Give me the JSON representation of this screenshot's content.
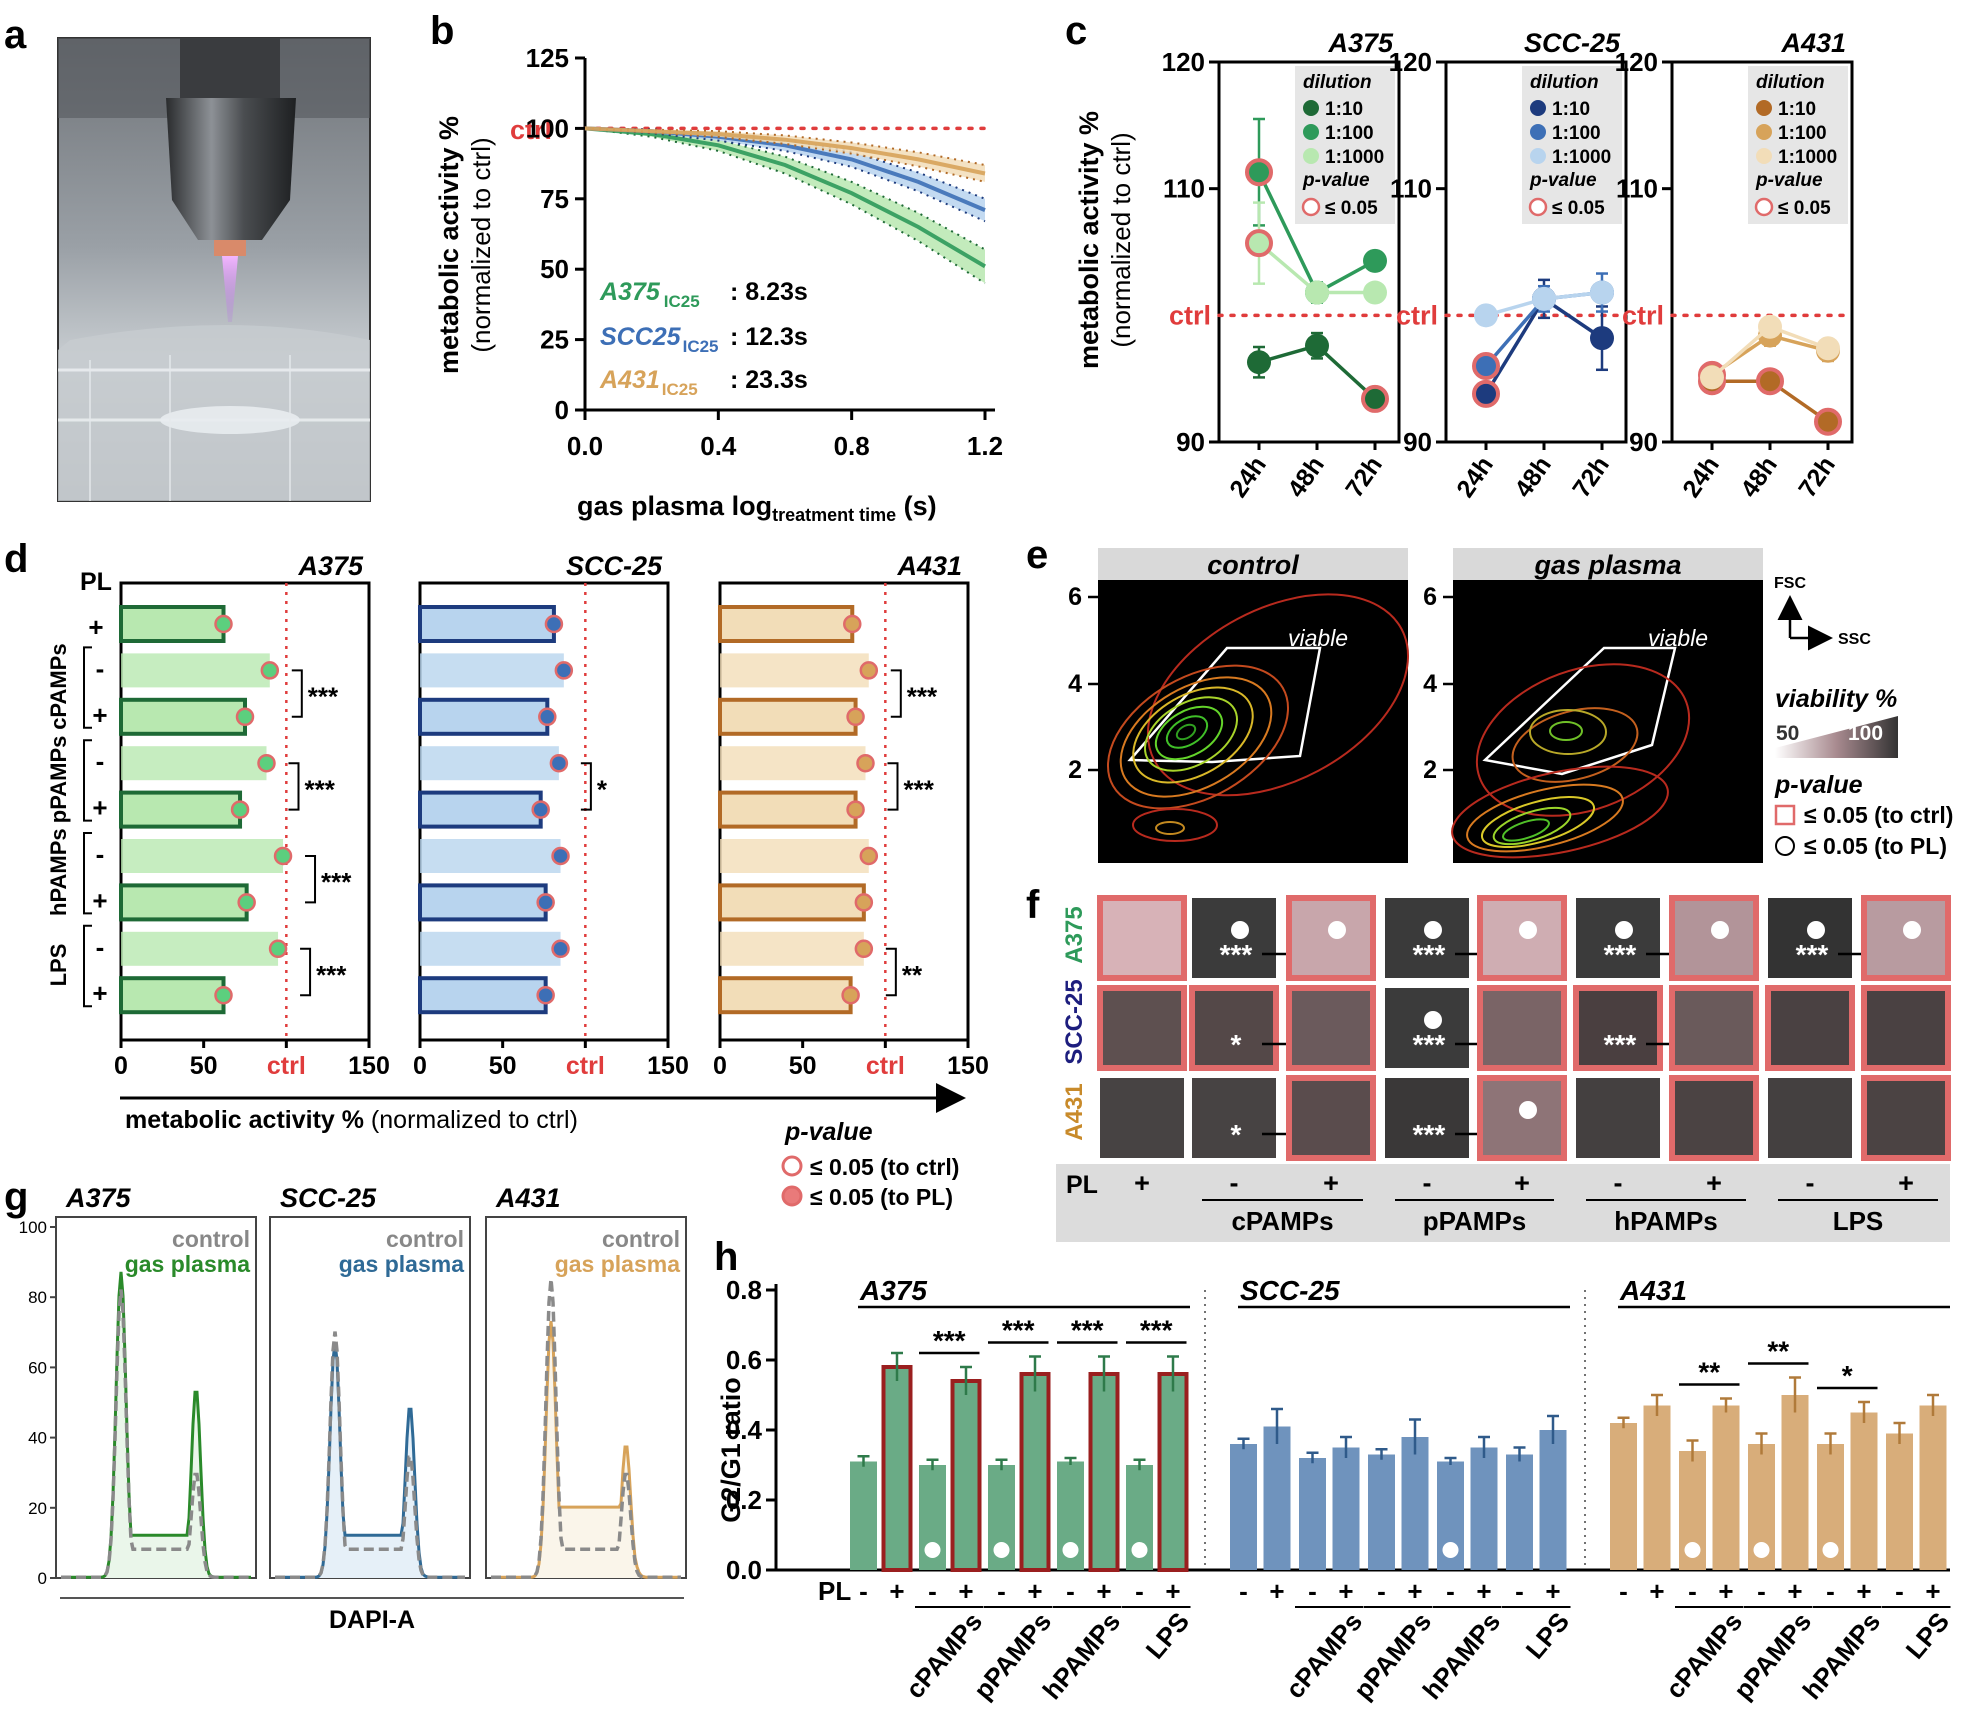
{
  "colors": {
    "a375": "#2e9a5a",
    "a375_dark": "#1e6a36",
    "a375_light": "#b8e8b0",
    "scc25": "#3d6fb6",
    "scc25_dark": "#1d3b7e",
    "scc25_light": "#b8d4ee",
    "a431": "#d7a35a",
    "a431_dark": "#b26a26",
    "a431_light": "#f2ddb8",
    "ctrl": "#e03c3c",
    "pvalue": "#e06a6a"
  },
  "panels": {
    "a": "a",
    "b": "b",
    "c": "c",
    "d": "d",
    "e": "e",
    "f": "f",
    "g": "g",
    "h": "h"
  },
  "common": {
    "ctrl": "ctrl",
    "PL": "PL",
    "plus": "+",
    "minus": "-",
    "conditions": [
      "cPAMPs",
      "pPAMPs",
      "hPAMPs",
      "LPS"
    ],
    "cell_lines": [
      "A375",
      "SCC-25",
      "A431"
    ]
  },
  "panel_b": {
    "ylabel_1": "metabolic activity %",
    "ylabel_2": "(normalized to ctrl)",
    "xlabel_main": "gas plasma log",
    "xlabel_sub": "treatment time",
    "xlabel_unit": " (s)",
    "yticks": [
      "0",
      "25",
      "50",
      "75",
      "100",
      "125"
    ],
    "xticks": [
      "0.0",
      "0.4",
      "0.8",
      "1.2"
    ],
    "ic_rows": [
      {
        "name": "A375",
        "sub": "IC25",
        "value": ": 8.23s"
      },
      {
        "name": "SCC25",
        "sub": "IC25",
        "value": ": 12.3s"
      },
      {
        "name": "A431",
        "sub": "IC25",
        "value": ": 23.3s"
      }
    ]
  },
  "panel_c": {
    "ylabel_1": "metabolic activity %",
    "ylabel_2": "(normalized to ctrl)",
    "yticks": [
      "90",
      "110",
      "120"
    ],
    "xticks": [
      "24h",
      "48h",
      "72h"
    ],
    "legend_title": "dilution",
    "dilutions": [
      "1:10",
      "1:100",
      "1:1000"
    ],
    "pvalue_title": "p-value",
    "pvalue_entry": "≤ 0.05"
  },
  "panel_d": {
    "xlabel_bold": "metabolic activity %",
    "xlabel_normal": " (normalized to ctrl)",
    "xticks": [
      "0",
      "50",
      "150"
    ],
    "group_labels": [
      "cPAMPs",
      "pPAMPs",
      "hPAMPs",
      "LPS"
    ],
    "sig": {
      "A375": [
        "***",
        "***",
        "***",
        "***"
      ],
      "SCC-25": [
        "",
        "*",
        "",
        ""
      ],
      "A431": [
        "***",
        "***",
        "",
        "**"
      ]
    },
    "legend_title": "p-value",
    "legend_ctrl": "≤ 0.05 (to ctrl)",
    "legend_pl": "≤ 0.05 (to PL)"
  },
  "panel_e": {
    "titles": [
      "control",
      "gas plasma"
    ],
    "gate_label": "viable",
    "yticks": [
      "6",
      "4",
      "2"
    ],
    "fsc": "FSC",
    "ssc": "SSC",
    "viability_title": "viability %",
    "viability_min": "50",
    "viability_max": "100",
    "pvalue_title": "p-value",
    "pvalue_ctrl": "≤ 0.05 (to ctrl)",
    "pvalue_pl": "≤ 0.05 (to PL)"
  },
  "panel_f": {
    "rows": [
      {
        "cells": [
          {
            "color": "#d7b2b7",
            "border": true,
            "dot": false,
            "stars": ""
          },
          {
            "color": "#3b3b3b",
            "border": false,
            "dot": true,
            "stars": "***"
          },
          {
            "color": "#c8a6ab",
            "border": true,
            "dot": true,
            "stars": ""
          },
          {
            "color": "#3a3a3a",
            "border": false,
            "dot": true,
            "stars": "***"
          },
          {
            "color": "#cfadb2",
            "border": true,
            "dot": true,
            "stars": ""
          },
          {
            "color": "#3b3b3b",
            "border": false,
            "dot": true,
            "stars": "***"
          },
          {
            "color": "#b29499",
            "border": true,
            "dot": true,
            "stars": ""
          },
          {
            "color": "#333333",
            "border": false,
            "dot": true,
            "stars": "***"
          },
          {
            "color": "#b89ba0",
            "border": true,
            "dot": true,
            "stars": ""
          }
        ]
      },
      {
        "cells": [
          {
            "color": "#5e5050",
            "border": true,
            "dot": false,
            "stars": ""
          },
          {
            "color": "#544848",
            "border": true,
            "dot": false,
            "stars": "*"
          },
          {
            "color": "#6b5a5c",
            "border": true,
            "dot": false,
            "stars": ""
          },
          {
            "color": "#3b3b3b",
            "border": false,
            "dot": true,
            "stars": "***"
          },
          {
            "color": "#7a6466",
            "border": true,
            "dot": false,
            "stars": ""
          },
          {
            "color": "#4a3f40",
            "border": true,
            "dot": false,
            "stars": "***"
          },
          {
            "color": "#6a5a5b",
            "border": true,
            "dot": false,
            "stars": ""
          },
          {
            "color": "#4a4142",
            "border": true,
            "dot": false,
            "stars": ""
          },
          {
            "color": "#4a4142",
            "border": true,
            "dot": false,
            "stars": ""
          }
        ]
      },
      {
        "cells": [
          {
            "color": "#474343",
            "border": false,
            "dot": false,
            "stars": ""
          },
          {
            "color": "#474343",
            "border": false,
            "dot": false,
            "stars": "*"
          },
          {
            "color": "#5a4c4d",
            "border": true,
            "dot": false,
            "stars": ""
          },
          {
            "color": "#3a3838",
            "border": false,
            "dot": false,
            "stars": "***"
          },
          {
            "color": "#8e7477",
            "border": true,
            "dot": true,
            "stars": ""
          },
          {
            "color": "#444040",
            "border": false,
            "dot": false,
            "stars": ""
          },
          {
            "color": "#4b4343",
            "border": true,
            "dot": false,
            "stars": ""
          },
          {
            "color": "#444040",
            "border": false,
            "dot": false,
            "stars": ""
          },
          {
            "color": "#4b4343",
            "border": true,
            "dot": false,
            "stars": ""
          }
        ]
      }
    ],
    "pl_signs": [
      "+",
      "-",
      "+",
      "-",
      "+",
      "-",
      "+",
      "-",
      "+"
    ]
  },
  "panel_g": {
    "legend_control": "control",
    "legend_plasma": "gas plasma",
    "yticks": [
      "100",
      "80",
      "60",
      "40",
      "20",
      "0"
    ],
    "xlabel": "DAPI-A"
  },
  "panel_h": {
    "ylabel": "G2/G1 ratio",
    "yticks": [
      "0.0",
      "0.2",
      "0.4",
      "0.6",
      "0.8"
    ],
    "PL": "PL",
    "x_signs": [
      "-",
      "+",
      "-",
      "+",
      "-",
      "+",
      "-",
      "+",
      "-",
      "+"
    ],
    "groups": [
      {
        "name": "A375",
        "values": [
          0.31,
          0.58,
          0.3,
          0.54,
          0.3,
          0.56,
          0.31,
          0.56,
          0.3,
          0.56
        ],
        "errors": [
          0.015,
          0.04,
          0.015,
          0.04,
          0.015,
          0.05,
          0.01,
          0.05,
          0.015,
          0.05
        ],
        "red_border": [
          false,
          true,
          false,
          true,
          false,
          true,
          false,
          true,
          false,
          true
        ],
        "dots": [
          false,
          false,
          true,
          false,
          true,
          false,
          true,
          false,
          true,
          false
        ],
        "sig": [
          "***",
          "***",
          "***",
          "***"
        ]
      },
      {
        "name": "SCC-25",
        "values": [
          0.36,
          0.41,
          0.32,
          0.35,
          0.33,
          0.38,
          0.31,
          0.35,
          0.33,
          0.4
        ],
        "errors": [
          0.015,
          0.05,
          0.015,
          0.03,
          0.015,
          0.05,
          0.01,
          0.03,
          0.02,
          0.04
        ],
        "red_border": [
          false,
          false,
          false,
          false,
          false,
          false,
          false,
          false,
          false,
          false
        ],
        "dots": [
          false,
          false,
          false,
          false,
          false,
          false,
          true,
          false,
          false,
          false
        ],
        "sig": [
          "",
          "",
          "",
          ""
        ]
      },
      {
        "name": "A431",
        "values": [
          0.42,
          0.47,
          0.34,
          0.47,
          0.36,
          0.5,
          0.36,
          0.45,
          0.39,
          0.47
        ],
        "errors": [
          0.015,
          0.03,
          0.03,
          0.02,
          0.03,
          0.05,
          0.03,
          0.03,
          0.03,
          0.03
        ],
        "red_border": [
          false,
          false,
          false,
          false,
          false,
          false,
          false,
          false,
          false,
          false
        ],
        "dots": [
          false,
          false,
          true,
          false,
          true,
          false,
          true,
          false,
          false,
          false
        ],
        "sig": [
          "**",
          "**",
          "*",
          ""
        ]
      }
    ]
  },
  "chart_data": [
    {
      "type": "line",
      "id": "b",
      "xlabel": "gas plasma log treatment time (s)",
      "ylabel": "metabolic activity % (normalized to ctrl)",
      "xlim": [
        0,
        1.2
      ],
      "ylim": [
        0,
        125
      ],
      "x": [
        0.0,
        0.2,
        0.4,
        0.6,
        0.8,
        1.0,
        1.2
      ],
      "series": [
        {
          "name": "A375",
          "values": [
            100,
            98,
            94,
            87,
            77,
            65,
            51
          ]
        },
        {
          "name": "SCC25",
          "values": [
            100,
            99,
            97,
            94,
            89,
            81,
            71
          ]
        },
        {
          "name": "A431",
          "values": [
            100,
            99,
            98,
            96,
            93,
            89,
            84
          ]
        }
      ],
      "ctrl": 100
    },
    {
      "type": "line",
      "id": "c",
      "categories": [
        "24h",
        "48h",
        "72h"
      ],
      "ylim": [
        90,
        120
      ],
      "panels": [
        {
          "name": "A375",
          "series": [
            {
              "name": "1:10",
              "values": [
                96.3,
                97.6,
                93.4
              ],
              "err": [
                1.2,
                1.0,
                0.8
              ],
              "sig": [
                false,
                false,
                true
              ]
            },
            {
              "name": "1:100",
              "values": [
                111.3,
                101.8,
                104.3
              ],
              "err": [
                4.2,
                0.8,
                0.5
              ],
              "sig": [
                true,
                false,
                false
              ]
            },
            {
              "name": "1:1000",
              "values": [
                105.7,
                101.8,
                101.8
              ],
              "err": [
                3.2,
                0.5,
                0.5
              ],
              "sig": [
                true,
                false,
                false
              ]
            }
          ]
        },
        {
          "name": "SCC-25",
          "series": [
            {
              "name": "1:10",
              "values": [
                93.8,
                101.3,
                98.2
              ],
              "err": [
                0.5,
                1.5,
                2.5
              ],
              "sig": [
                true,
                false,
                false
              ]
            },
            {
              "name": "1:100",
              "values": [
                96.0,
                101.3,
                101.8
              ],
              "err": [
                0.5,
                1.0,
                1.5
              ],
              "sig": [
                true,
                false,
                false
              ]
            },
            {
              "name": "1:1000",
              "values": [
                100.0,
                101.3,
                101.8
              ],
              "err": [
                0.5,
                0.5,
                0.5
              ],
              "sig": [
                false,
                false,
                false
              ]
            }
          ]
        },
        {
          "name": "A431",
          "series": [
            {
              "name": "1:10",
              "values": [
                94.8,
                94.8,
                91.6
              ],
              "err": [
                0.5,
                0.5,
                0.5
              ],
              "sig": [
                true,
                true,
                true
              ]
            },
            {
              "name": "1:100",
              "values": [
                95.3,
                98.4,
                97.2
              ],
              "err": [
                0.5,
                0.8,
                0.8
              ],
              "sig": [
                true,
                false,
                false
              ]
            },
            {
              "name": "1:1000",
              "values": [
                95.1,
                99.1,
                97.4
              ],
              "err": [
                0.5,
                0.5,
                0.5
              ],
              "sig": [
                false,
                false,
                false
              ]
            }
          ]
        }
      ]
    },
    {
      "type": "bar",
      "id": "d",
      "orientation": "horizontal",
      "xlim": [
        0,
        150
      ],
      "ctrl": 100,
      "rows": [
        "PL+",
        "cPAMPs-",
        "cPAMPs+",
        "pPAMPs-",
        "pPAMPs+",
        "hPAMPs-",
        "hPAMPs+",
        "LPS-",
        "LPS+"
      ],
      "series": [
        {
          "name": "A375",
          "values": [
            62,
            90,
            75,
            88,
            72,
            98,
            76,
            95,
            62
          ]
        },
        {
          "name": "SCC-25",
          "values": [
            81,
            87,
            77,
            84,
            73,
            85,
            76,
            85,
            76
          ]
        },
        {
          "name": "A431",
          "values": [
            80,
            90,
            82,
            88,
            82,
            90,
            87,
            87,
            79
          ]
        }
      ]
    },
    {
      "type": "line",
      "id": "g",
      "ylim": [
        0,
        100
      ],
      "xlabel": "DAPI-A",
      "panels": [
        {
          "name": "A375",
          "series": [
            "control",
            "gas plasma"
          ]
        },
        {
          "name": "SCC-25",
          "series": [
            "control",
            "gas plasma"
          ]
        },
        {
          "name": "A431",
          "series": [
            "control",
            "gas plasma"
          ]
        }
      ]
    },
    {
      "type": "bar",
      "id": "h",
      "ylabel": "G2/G1 ratio",
      "ylim": [
        0,
        0.8
      ],
      "categories": [
        "PL-",
        "PL+",
        "cPAMPs-",
        "cPAMPs+",
        "pPAMPs-",
        "pPAMPs+",
        "hPAMPs-",
        "hPAMPs+",
        "LPS-",
        "LPS+"
      ],
      "series": [
        {
          "name": "A375",
          "values": [
            0.31,
            0.58,
            0.3,
            0.54,
            0.3,
            0.56,
            0.31,
            0.56,
            0.3,
            0.56
          ]
        },
        {
          "name": "SCC-25",
          "values": [
            0.36,
            0.41,
            0.32,
            0.35,
            0.33,
            0.38,
            0.31,
            0.35,
            0.33,
            0.4
          ]
        },
        {
          "name": "A431",
          "values": [
            0.42,
            0.47,
            0.34,
            0.47,
            0.36,
            0.5,
            0.36,
            0.45,
            0.39,
            0.47
          ]
        }
      ]
    }
  ]
}
